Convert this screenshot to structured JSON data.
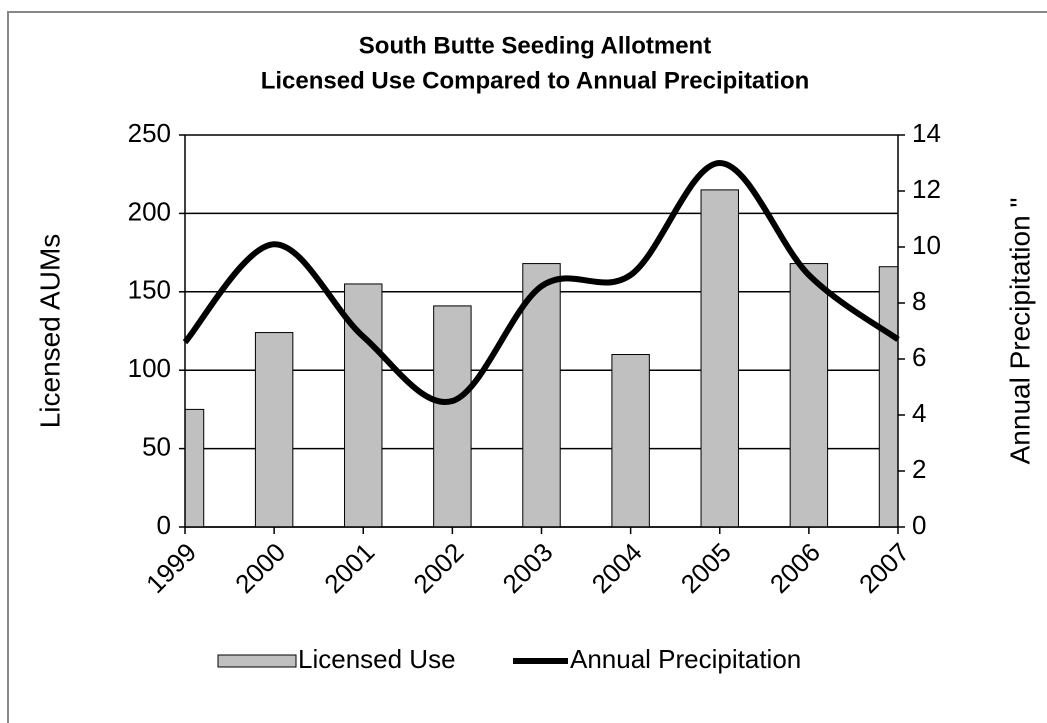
{
  "chart_data": {
    "type": "bar",
    "title": [
      "South Butte Seeding Allotment",
      "Licensed Use Compared to Annual Precipitation"
    ],
    "y_label": "Licensed AUMs",
    "y2_label": "Annual Precipitation \"",
    "x": [
      1999,
      2000,
      2001,
      2002,
      2003,
      2004,
      2005,
      2006,
      2007
    ],
    "xlim": [
      1999,
      2007
    ],
    "xticks": [
      1999,
      2000,
      2001,
      2002,
      2003,
      2004,
      2005,
      2006,
      2007
    ],
    "ylim": [
      0,
      250
    ],
    "yticks": [
      0,
      50,
      100,
      150,
      200,
      250
    ],
    "y2lim": [
      0,
      14
    ],
    "y2ticks": [
      0,
      2,
      4,
      6,
      8,
      10,
      12,
      14
    ],
    "grid": true,
    "legend": "bottom",
    "series": [
      {
        "name": "Licensed Use",
        "type": "bar",
        "color": "#c0c0c0",
        "values": [
          75,
          124,
          155,
          141,
          168,
          110,
          215,
          168,
          166
        ]
      },
      {
        "name": "Annual Precipitation",
        "type": "line",
        "color": "#000000",
        "axis": "y2",
        "values": [
          6.6,
          10.1,
          6.8,
          4.5,
          8.6,
          9.0,
          13.0,
          9.0,
          6.7
        ]
      }
    ]
  }
}
